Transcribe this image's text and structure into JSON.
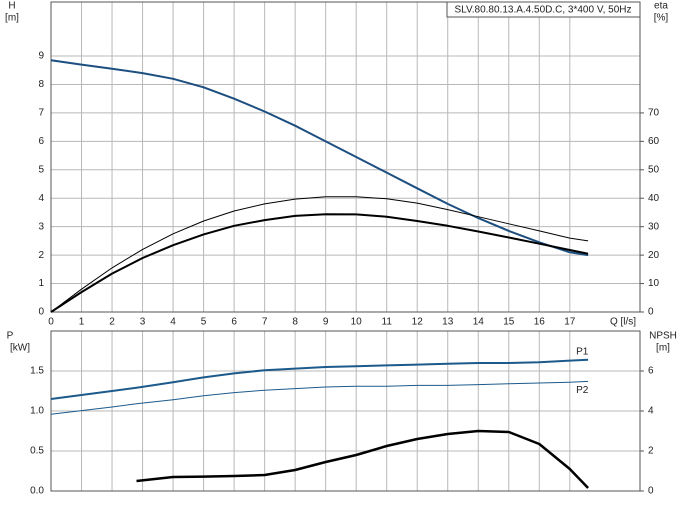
{
  "chart_data": [
    {
      "type": "line",
      "title": "SLV.80.80.13.A.4.50D.C, 3*400 V, 50Hz",
      "ylabel": "H",
      "yunit": "[m]",
      "y2label": "eta",
      "y2unit": "[%]",
      "xlabel": "Q [l/s]",
      "x": [
        0,
        1,
        2,
        3,
        4,
        5,
        6,
        7,
        8,
        9,
        10,
        11,
        12,
        13,
        14,
        15,
        16,
        17,
        17.6
      ],
      "xlim": [
        0,
        19.3
      ],
      "xticks": [
        0,
        1,
        2,
        3,
        4,
        5,
        6,
        7,
        8,
        9,
        10,
        11,
        12,
        13,
        14,
        15,
        16,
        17
      ],
      "ylim": [
        0,
        10.9
      ],
      "yticks": [
        0,
        1,
        2,
        3,
        4,
        5,
        6,
        7,
        8,
        9
      ],
      "y2lim": [
        0,
        109
      ],
      "y2ticks": [
        0,
        10,
        20,
        30,
        40,
        50,
        60,
        70
      ],
      "grid": true,
      "series": [
        {
          "color": "#1c4f80",
          "values": [
            8.85,
            8.7,
            8.55,
            8.4,
            8.2,
            7.9,
            7.5,
            7.05,
            6.55,
            6.0,
            5.45,
            4.9,
            4.35,
            3.8,
            3.3,
            2.85,
            2.45,
            2.1,
            2.0
          ]
        },
        {
          "color": "#000000",
          "axis": "y2",
          "values": [
            0,
            8,
            15.5,
            22,
            27.5,
            32,
            35.5,
            38,
            39.7,
            40.5,
            40.5,
            39.8,
            38.3,
            36,
            33.5,
            31,
            28.5,
            26,
            25
          ]
        },
        {
          "color": "#000000",
          "axis": "y2",
          "values": [
            0,
            7,
            13.5,
            19,
            23.5,
            27.3,
            30.3,
            32.3,
            33.8,
            34.4,
            34.3,
            33.5,
            32,
            30.3,
            28.3,
            26.2,
            24,
            21.8,
            20.5
          ]
        }
      ]
    },
    {
      "type": "line",
      "ylabel": "P",
      "yunit": "[kW]",
      "y2label": "NPSH",
      "y2unit": "[m]",
      "x": [
        0,
        2,
        2.8,
        4,
        5,
        6,
        7,
        8,
        9,
        10,
        11,
        12,
        13,
        14,
        15,
        16,
        17,
        17.6
      ],
      "xlim": [
        0,
        19.3
      ],
      "ylim": [
        0,
        2
      ],
      "yticks": [
        {
          "value": 0,
          "label": "0.0"
        },
        0.5,
        {
          "value": 1,
          "label": "1.0"
        },
        1.5
      ],
      "y2lim": [
        0,
        8
      ],
      "y2ticks": [
        0,
        2,
        4,
        6
      ],
      "grid": true,
      "series": [
        {
          "name": "P1",
          "color": "#1c5a8c",
          "values": [
            1.15,
            1.25,
            1.29,
            1.36,
            1.42,
            1.47,
            1.51,
            1.53,
            1.55,
            1.56,
            1.57,
            1.58,
            1.59,
            1.6,
            1.6,
            1.61,
            1.63,
            1.64
          ]
        },
        {
          "name": "P2",
          "color": "#1c5a8c",
          "values": [
            0.96,
            1.05,
            1.09,
            1.14,
            1.19,
            1.23,
            1.26,
            1.28,
            1.3,
            1.31,
            1.31,
            1.32,
            1.32,
            1.33,
            1.34,
            1.35,
            1.36,
            1.37
          ]
        },
        {
          "color": "#000000",
          "axis": "y2",
          "values": [
            null,
            null,
            0.5,
            0.7,
            0.72,
            0.75,
            0.8,
            1.05,
            1.45,
            1.8,
            2.25,
            2.6,
            2.85,
            3.0,
            2.95,
            2.35,
            1.1,
            0.15
          ]
        }
      ]
    }
  ]
}
